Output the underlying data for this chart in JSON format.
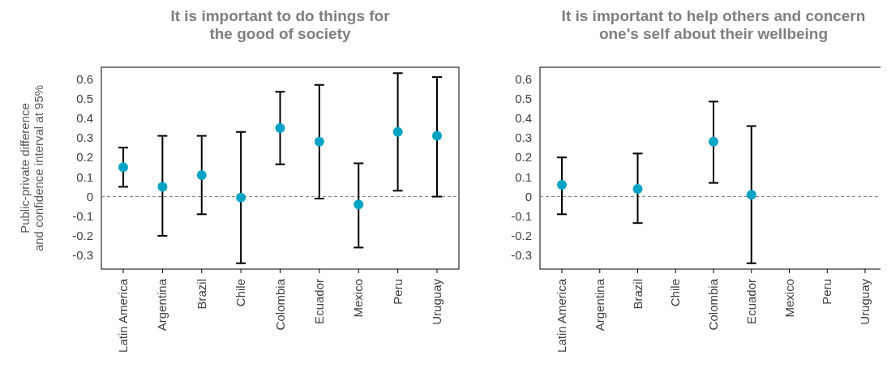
{
  "chart_data": [
    {
      "type": "scatter",
      "title": "It is important to do things for\nthe good of society",
      "ylabel": "Public-private difference\nand confidence interval at 95%",
      "categories": [
        "Latin America",
        "Argentina",
        "Brazil",
        "Chile",
        "Colombia",
        "Ecuador",
        "Mexico",
        "Peru",
        "Uruguay"
      ],
      "series": [
        {
          "color": "#00a3c4",
          "values": [
            0.15,
            0.05,
            0.11,
            -0.005,
            0.35,
            0.28,
            -0.04,
            0.33,
            0.31
          ],
          "errors": [
            [
              0.05,
              0.25
            ],
            [
              -0.2,
              0.31
            ],
            [
              -0.09,
              0.31
            ],
            [
              -0.34,
              0.33
            ],
            [
              0.165,
              0.535
            ],
            [
              -0.01,
              0.57
            ],
            [
              -0.26,
              0.17
            ],
            [
              0.03,
              0.63
            ],
            [
              0.0,
              0.61
            ]
          ]
        }
      ],
      "ylim": [
        -0.37,
        0.66
      ],
      "yticks": [
        -0.3,
        -0.2,
        -0.1,
        0,
        0.1,
        0.2,
        0.3,
        0.4,
        0.5,
        0.6
      ],
      "marker": "circle",
      "ref_lines": [
        {
          "axis": "y",
          "value": 0,
          "color": "#808080",
          "line_style": "dashed"
        }
      ]
    },
    {
      "type": "scatter",
      "title": "It is important to help others and concern\none's self about their wellbeing",
      "categories": [
        "Latin America",
        "Argentina",
        "Brazil",
        "Chile",
        "Colombia",
        "Ecuador",
        "Mexico",
        "Peru",
        "Uruguay"
      ],
      "series": [
        {
          "color": "#00a3c4",
          "values": [
            0.06,
            null,
            0.04,
            null,
            0.28,
            0.01,
            null,
            null,
            null
          ],
          "errors": [
            [
              -0.09,
              0.2
            ],
            null,
            [
              -0.135,
              0.22
            ],
            null,
            [
              0.07,
              0.485
            ],
            [
              -0.34,
              0.36
            ],
            null,
            null,
            null
          ]
        }
      ],
      "ylim": [
        -0.37,
        0.66
      ],
      "yticks": [
        -0.3,
        -0.2,
        -0.1,
        0,
        0.1,
        0.2,
        0.3,
        0.4,
        0.5,
        0.6
      ],
      "marker": "circle",
      "ref_lines": [
        {
          "axis": "y",
          "value": 0,
          "color": "#808080",
          "line_style": "dashed"
        }
      ]
    }
  ]
}
